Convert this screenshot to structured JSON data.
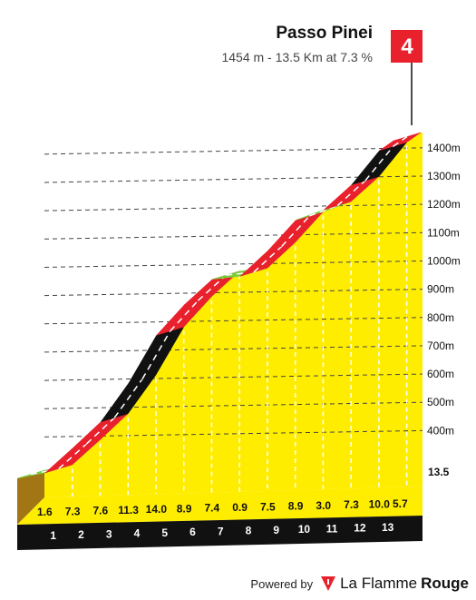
{
  "header": {
    "title": "Passo Pinei",
    "subtitle": "1454 m - 13.5 Km at 7.3 %"
  },
  "footer": {
    "powered_by": "Powered by",
    "brand_part1": "La Flamme",
    "brand_part2": "Rouge",
    "brand_icon": "flamme-rouge-logo-icon"
  },
  "colors": {
    "fill": "#FFED00",
    "fill_side": "#A27614",
    "base": "#111111",
    "red": "#E8212C",
    "green": "#7ACB3C",
    "black": "#111111",
    "summit_flag": "#E8212C"
  },
  "chart_data": {
    "type": "area",
    "title": "Passo Pinei",
    "summit_category": "4",
    "x_km_labels": [
      "1",
      "2",
      "3",
      "4",
      "5",
      "6",
      "7",
      "8",
      "9",
      "10",
      "11",
      "12",
      "13"
    ],
    "end_km_label": "13.5",
    "y_tick_labels": [
      "400m",
      "500m",
      "600m",
      "700m",
      "800m",
      "900m",
      "1000m",
      "1100m",
      "1200m",
      "1300m",
      "1400m"
    ],
    "y_ticks": [
      400,
      500,
      600,
      700,
      800,
      900,
      1000,
      1100,
      1200,
      1300,
      1400
    ],
    "ylim": [
      260,
      1454
    ],
    "xlim": [
      0,
      13.5
    ],
    "km_gradients": [
      {
        "km": 1,
        "grade": 1.6,
        "label": "1.6",
        "color": "green"
      },
      {
        "km": 2,
        "grade": 7.3,
        "label": "7.3",
        "color": "red"
      },
      {
        "km": 3,
        "grade": 7.6,
        "label": "7.6",
        "color": "red"
      },
      {
        "km": 4,
        "grade": 11.3,
        "label": "11.3",
        "color": "black"
      },
      {
        "km": 5,
        "grade": 14.0,
        "label": "14.0",
        "color": "black"
      },
      {
        "km": 6,
        "grade": 8.9,
        "label": "8.9",
        "color": "red"
      },
      {
        "km": 7,
        "grade": 7.4,
        "label": "7.4",
        "color": "red"
      },
      {
        "km": 8,
        "grade": 0.9,
        "label": "0.9",
        "color": "green"
      },
      {
        "km": 9,
        "grade": 7.5,
        "label": "7.5",
        "color": "red"
      },
      {
        "km": 10,
        "grade": 8.9,
        "label": "8.9",
        "color": "red"
      },
      {
        "km": 11,
        "grade": 3.0,
        "label": "3.0",
        "color": "green"
      },
      {
        "km": 12,
        "grade": 7.3,
        "label": "7.3",
        "color": "red"
      },
      {
        "km": 13,
        "grade": 10.0,
        "label": "10.0",
        "color": "black"
      },
      {
        "km": 13.5,
        "grade": 5.7,
        "label": "5.7",
        "color": "red"
      }
    ]
  }
}
